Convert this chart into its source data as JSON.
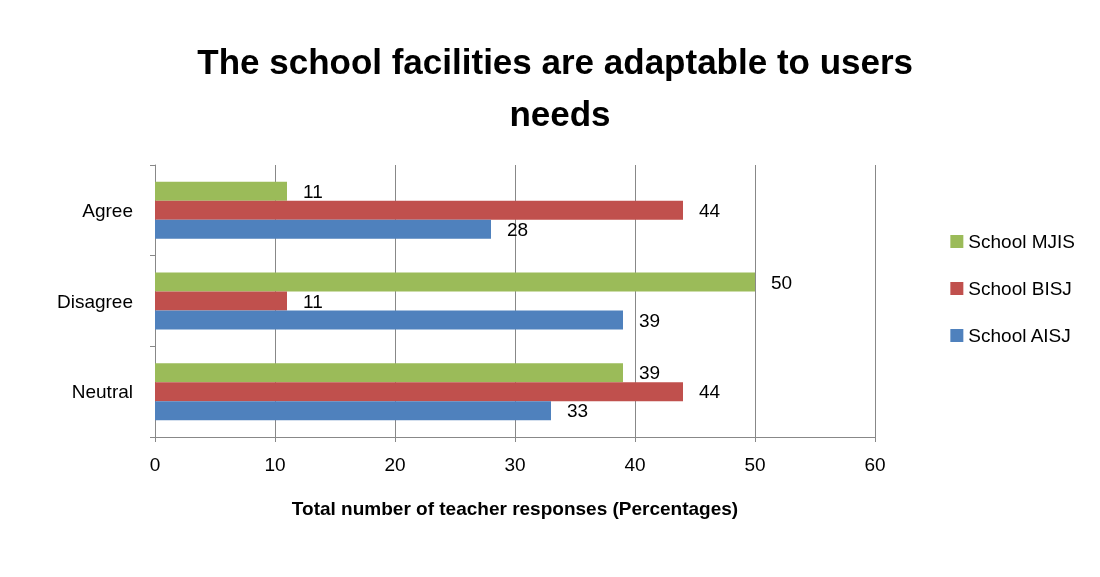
{
  "chart_data": {
    "type": "bar",
    "orientation": "horizontal",
    "title": "The school facilities are adaptable to users needs",
    "xlabel": "Total number of teacher responses (Percentages)",
    "categories": [
      "Agree",
      "Disagree",
      "Neutral"
    ],
    "series": [
      {
        "name": "School MJIS",
        "color": "#9bbb59",
        "values": [
          11,
          50,
          39
        ]
      },
      {
        "name": "School BISJ",
        "color": "#c0504d",
        "values": [
          44,
          11,
          44
        ]
      },
      {
        "name": "School AISJ",
        "color": "#4f81bd",
        "values": [
          28,
          39,
          33
        ]
      }
    ],
    "xlim": [
      0,
      60
    ],
    "xticks": [
      0,
      10,
      20,
      30,
      40,
      50,
      60
    ],
    "grid": "x",
    "legend": "right",
    "data_labels": true
  }
}
